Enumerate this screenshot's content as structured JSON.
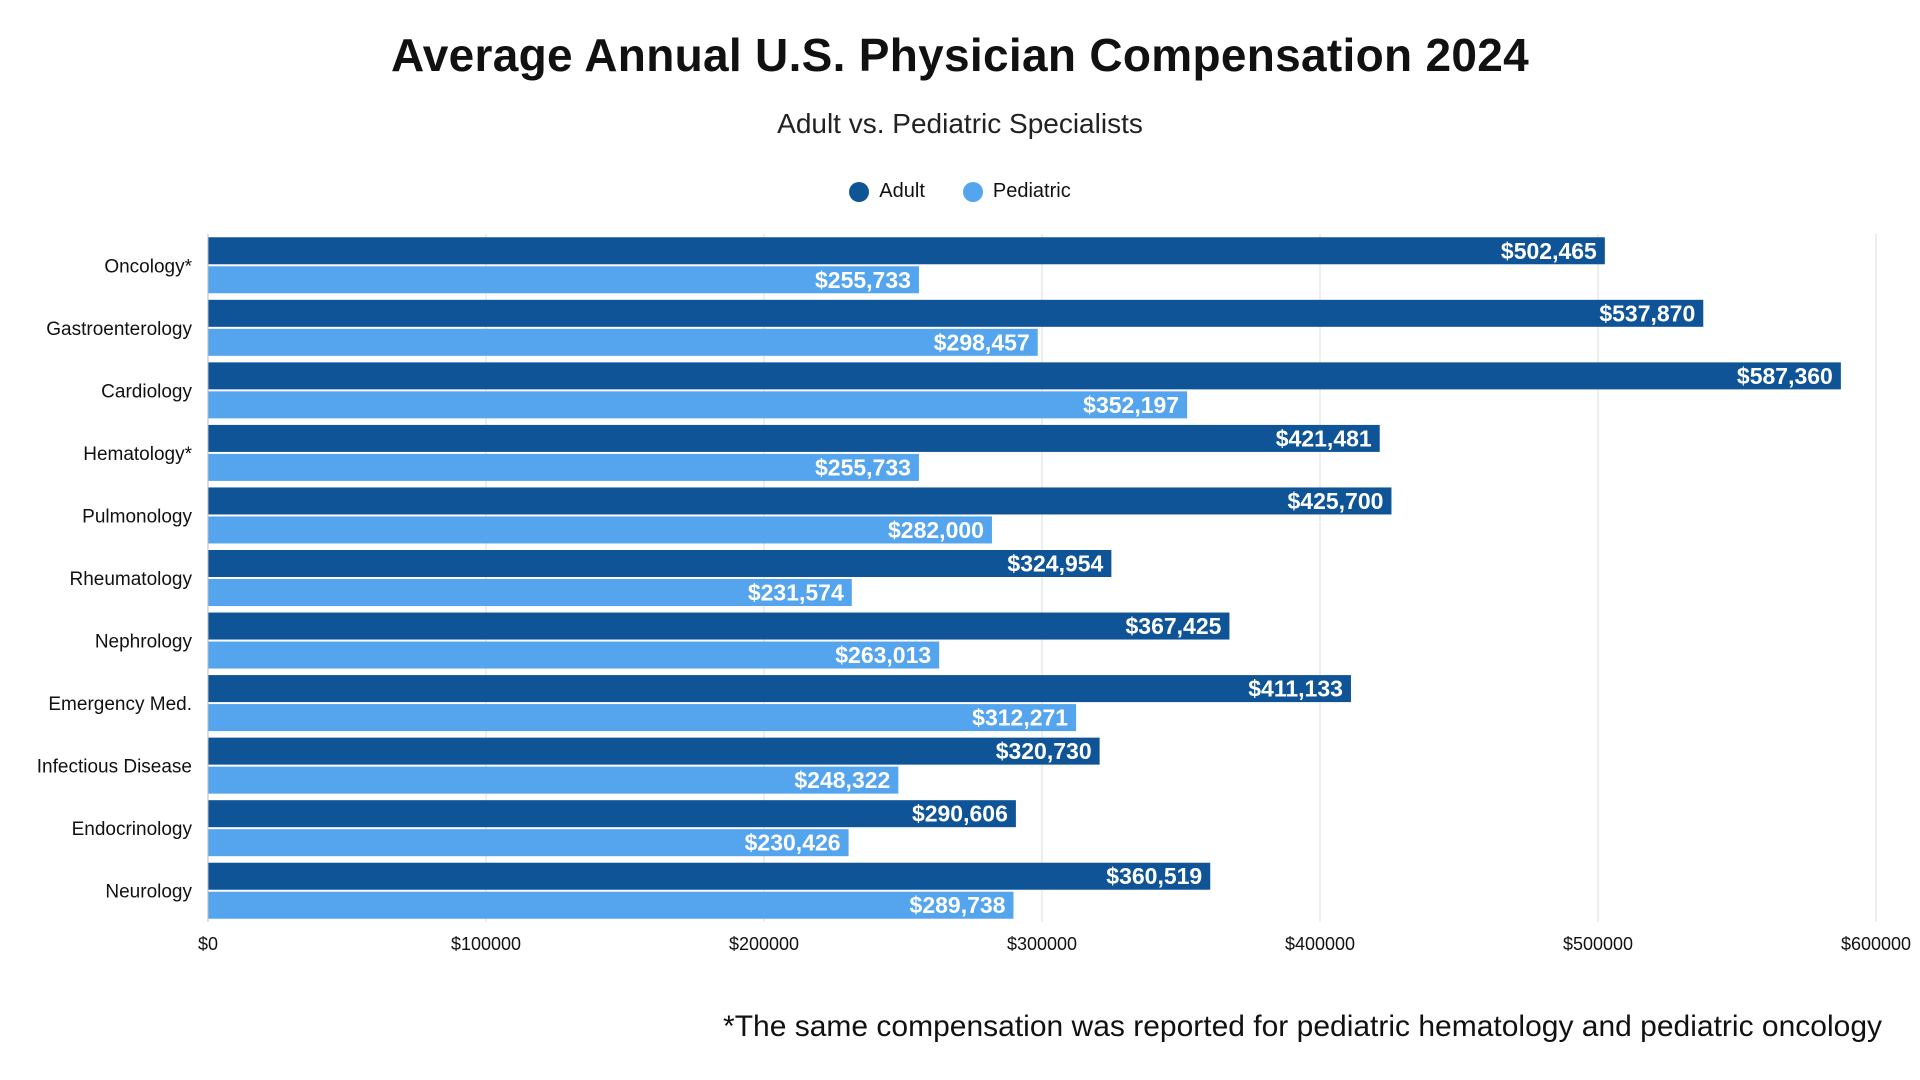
{
  "title": "Average Annual U.S. Physician Compensation 2024",
  "subtitle": "Adult vs. Pediatric Specialists",
  "footnote": "*The same compensation was reported for pediatric hematology and pediatric oncology",
  "colors": {
    "adult": "#0f5496",
    "pediatric": "#54a4ee",
    "grid": "#dddddd",
    "label_text": "#ffffff"
  },
  "chart_data": {
    "type": "bar",
    "orientation": "horizontal",
    "categories": [
      "Oncology*",
      "Gastroenterology",
      "Cardiology",
      "Hematology*",
      "Pulmonology",
      "Rheumatology",
      "Nephrology",
      "Emergency Med.",
      "Infectious Disease",
      "Endocrinology",
      "Neurology"
    ],
    "series": [
      {
        "name": "Adult",
        "color": "#0f5496",
        "values": [
          502465,
          537870,
          587360,
          421481,
          425700,
          324954,
          367425,
          411133,
          320730,
          290606,
          360519
        ],
        "labels": [
          "$502,465",
          "$537,870",
          "$587,360",
          "$421,481",
          "$425,700",
          "$324,954",
          "$367,425",
          "$411,133",
          "$320,730",
          "$290,606",
          "$360,519"
        ]
      },
      {
        "name": "Pediatric",
        "color": "#54a4ee",
        "values": [
          255733,
          298457,
          352197,
          255733,
          282000,
          231574,
          263013,
          312271,
          248322,
          230426,
          289738
        ],
        "labels": [
          "$255,733",
          "$298,457",
          "$352,197",
          "$255,733",
          "$282,000",
          "$231,574",
          "$263,013",
          "$312,271",
          "$248,322",
          "$230,426",
          "$289,738"
        ]
      }
    ],
    "xlim": [
      0,
      600000
    ],
    "xticks": [
      0,
      100000,
      200000,
      300000,
      400000,
      500000,
      600000
    ],
    "xtick_labels": [
      "$0",
      "$100000",
      "$200000",
      "$300000",
      "$400000",
      "$500000",
      "$600000"
    ],
    "legend_position": "top-center",
    "grid": "vertical"
  }
}
